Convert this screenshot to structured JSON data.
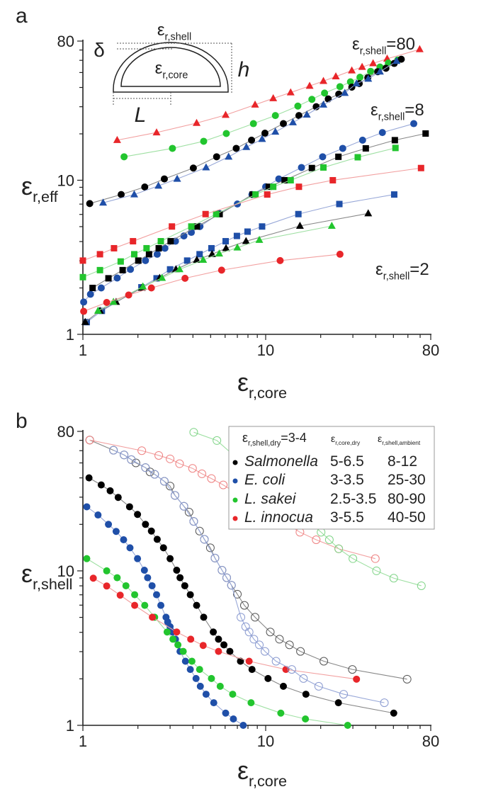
{
  "chart_data": [
    {
      "panel_label": "a",
      "type": "scatter",
      "xscale": "log",
      "yscale": "log",
      "xlim": [
        1,
        80
      ],
      "ylim": [
        1,
        80
      ],
      "xticks": [
        "1",
        "10",
        "80"
      ],
      "yticks": [
        "1",
        "10",
        "80"
      ],
      "xlabel": {
        "main": "ε",
        "sub": "r,core"
      },
      "ylabel": {
        "main": "ε",
        "sub": "r,eff"
      },
      "annotations": [
        {
          "main": "ε",
          "sub": "r,shell",
          "tail": "=80"
        },
        {
          "main": "ε",
          "sub": "r,shell",
          "tail": "=8"
        },
        {
          "main": "ε",
          "sub": "r,shell",
          "tail": "=2"
        }
      ],
      "inset": {
        "shell": {
          "main": "ε",
          "sub": "r,shell"
        },
        "core": {
          "main": "ε",
          "sub": "r,core"
        },
        "delta": "δ",
        "h": "h",
        "L": "L"
      },
      "series": [
        {
          "color": "#e8262a",
          "line": "#f2a0a0",
          "marker": "triangle",
          "filled": true,
          "x": [
            1.54,
            2.53,
            4.19,
            6.04,
            8.75,
            11.0,
            13.7,
            17.4,
            20.7,
            24.2,
            29.6,
            33.7,
            38.7,
            46.2,
            69.6
          ],
          "y": [
            18.2,
            20.4,
            23.5,
            26.5,
            30.9,
            34.0,
            37.1,
            40.9,
            44.0,
            47.1,
            51.5,
            54.3,
            57.3,
            61.4,
            70.7
          ]
        },
        {
          "color": "#22c52e",
          "line": "#9fe0a3",
          "marker": "circle",
          "filled": true,
          "x": [
            1.68,
            3.09,
            4.58,
            6.09,
            8.57,
            11.3,
            15.0,
            17.9,
            21.0,
            25.5,
            29.1,
            32.8,
            37.5,
            42.2,
            46.9,
            52.8
          ],
          "y": [
            14.2,
            16.1,
            17.9,
            20.1,
            23.3,
            26.3,
            30.3,
            33.5,
            36.8,
            40.5,
            43.5,
            46.6,
            50.9,
            54.3,
            57.6,
            60.3
          ]
        },
        {
          "color": "#000000",
          "line": "#888888",
          "marker": "circle",
          "filled": true,
          "x": [
            1.09,
            1.62,
            2.18,
            2.79,
            4.02,
            5.39,
            6.9,
            8.37,
            9.91,
            12.5,
            15.2,
            18.9,
            22.0,
            25.1,
            29.6,
            32.5,
            36.2,
            41.0,
            45.5,
            50.5,
            55.2
          ],
          "y": [
            7.06,
            8.08,
            9.04,
            10.2,
            12.0,
            14.2,
            16.1,
            18.2,
            20.2,
            23.3,
            26.3,
            30.0,
            33.7,
            36.2,
            40.2,
            42.4,
            46.3,
            50.6,
            53.3,
            57.3,
            61.0
          ]
        },
        {
          "color": "#1f4fa8",
          "line": "#98a8d8",
          "marker": "triangle",
          "filled": true,
          "x": [
            1.29,
            1.91,
            2.59,
            3.28,
            4.72,
            6.27,
            7.84,
            9.56,
            11.3,
            14.1,
            16.8,
            20.7,
            27.1,
            31.4,
            36.4,
            42.2,
            52.0
          ],
          "y": [
            7.14,
            8.08,
            9.2,
            10.2,
            12.1,
            14.2,
            16.4,
            18.5,
            20.6,
            23.7,
            26.6,
            30.9,
            36.8,
            42.4,
            45.5,
            50.6,
            59.3
          ]
        },
        {
          "color": "#1f4fa8",
          "line": "#98a8d8",
          "marker": "circle",
          "filled": true,
          "x": [
            1.01,
            1.1,
            1.26,
            1.54,
            1.82,
            2.2,
            2.55,
            2.81,
            3.21,
            3.57,
            3.92,
            4.37,
            5.57,
            7.0,
            8.41,
            10.0,
            11.8,
            15.7,
            20.5,
            26.4,
            33.9,
            43.5,
            64.6
          ],
          "y": [
            1.62,
            1.82,
            2.0,
            2.32,
            2.64,
            3.01,
            3.31,
            3.62,
            4.02,
            4.35,
            4.59,
            5.01,
            6.09,
            7.01,
            8.08,
            9.07,
            10.2,
            12.1,
            14.2,
            16.1,
            18.2,
            20.4,
            23.3
          ]
        },
        {
          "color": "#000000",
          "line": "#888888",
          "marker": "square",
          "filled": true,
          "x": [
            1.13,
            1.38,
            1.65,
            2.01,
            2.3,
            2.6,
            3.02,
            4.2,
            5.6,
            8.49,
            10.4,
            12.7,
            17.9,
            25.0,
            35.3,
            50.9,
            75.0
          ],
          "y": [
            2.0,
            2.31,
            2.61,
            3.01,
            3.31,
            3.62,
            4.02,
            5.01,
            6.03,
            8.08,
            9.07,
            10.0,
            12.0,
            14.2,
            16.1,
            18.2,
            20.1
          ]
        },
        {
          "color": "#22c52e",
          "line": "#9fe0a3",
          "marker": "square",
          "filled": true,
          "x": [
            1.0,
            1.24,
            1.61,
            1.91,
            2.23,
            2.67,
            3.92,
            5.36,
            8.8,
            11.0,
            13.7,
            20.7,
            31.9,
            51.3
          ],
          "y": [
            2.35,
            2.61,
            2.97,
            3.31,
            3.62,
            4.02,
            5.01,
            6.03,
            8.08,
            9.07,
            10.0,
            12.1,
            14.1,
            16.2
          ]
        },
        {
          "color": "#e8262a",
          "line": "#f2a0a0",
          "marker": "square",
          "filled": true,
          "x": [
            1.0,
            1.24,
            1.48,
            1.88,
            3.07,
            4.69,
            10.2,
            15.2,
            23.3,
            70.8
          ],
          "y": [
            3.01,
            3.31,
            3.62,
            4.02,
            5.01,
            6.03,
            8.08,
            9.07,
            10.0,
            12.0
          ]
        },
        {
          "color": "#1f4fa8",
          "line": "#98a8d8",
          "marker": "square",
          "filled": true,
          "x": [
            1.05,
            1.27,
            2.09,
            2.53,
            3.0,
            3.72,
            4.35,
            5.05,
            6.04,
            6.96,
            7.96,
            9.56,
            15.1,
            25.3,
            50.5
          ],
          "y": [
            1.2,
            1.42,
            2.02,
            2.31,
            2.64,
            3.01,
            3.31,
            3.62,
            4.02,
            4.35,
            4.64,
            5.01,
            6.03,
            7.01,
            8.08
          ]
        },
        {
          "color": "#000000",
          "line": "#888888",
          "marker": "triangle",
          "filled": true,
          "x": [
            1.03,
            1.24,
            1.52,
            2.1,
            2.63,
            3.23,
            4.2,
            5.09,
            6.07,
            7.81,
            15.4,
            36.4
          ],
          "y": [
            1.2,
            1.42,
            1.62,
            2.0,
            2.32,
            2.64,
            3.04,
            3.31,
            3.62,
            4.02,
            5.05,
            6.09
          ]
        },
        {
          "color": "#22c52e",
          "line": "#9fe0a3",
          "marker": "triangle",
          "filled": true,
          "x": [
            1.21,
            1.47,
            2.13,
            2.71,
            3.38,
            4.55,
            5.57,
            7.0,
            9.23,
            23.0
          ],
          "y": [
            1.42,
            1.62,
            2.04,
            2.32,
            2.64,
            3.04,
            3.34,
            3.65,
            4.09,
            5.05
          ]
        },
        {
          "color": "#e8262a",
          "line": "#f2a0a0",
          "marker": "circle",
          "filled": true,
          "x": [
            1.01,
            1.35,
            1.78,
            2.37,
            3.62,
            5.74,
            12.0,
            25.5
          ],
          "y": [
            1.41,
            1.61,
            1.8,
            2.0,
            2.31,
            2.61,
            3.01,
            3.31
          ]
        }
      ]
    },
    {
      "panel_label": "b",
      "type": "scatter",
      "xscale": "log",
      "yscale": "log",
      "xlim": [
        1,
        80
      ],
      "ylim": [
        1,
        80
      ],
      "xticks": [
        "1",
        "10",
        "80"
      ],
      "yticks": [
        "1",
        "10",
        "80"
      ],
      "xlabel": {
        "main": "ε",
        "sub": "r,core"
      },
      "ylabel": {
        "main": "ε",
        "sub": "r,shell"
      },
      "legend": {
        "position": "top-right",
        "header": {
          "main": "ε",
          "sub": "r,shell,dry",
          "tail": "=3-4"
        },
        "col2": {
          "main": "ε",
          "sub": "r,core,dry"
        },
        "col3": {
          "main": "ε",
          "sub": "r,shell,ambient"
        },
        "rows": [
          {
            "name": "Salmonella",
            "core_dry": "5-6.5",
            "shell_ambient": "8-12",
            "color": "#000000"
          },
          {
            "name": "E. coli",
            "core_dry": "3-3.5",
            "shell_ambient": "25-30",
            "color": "#1f4fa8"
          },
          {
            "name": "L. sakei",
            "core_dry": "2.5-3.5",
            "shell_ambient": "80-90",
            "color": "#22c52e"
          },
          {
            "name": "L. innocua",
            "core_dry": "3-5.5",
            "shell_ambient": "40-50",
            "color": "#e8262a"
          }
        ]
      },
      "series": [
        {
          "name": "Salmonella",
          "color": "#000000",
          "line": "#888888",
          "marker": "circle",
          "filled": true,
          "x": [
            1.08,
            1.26,
            1.41,
            1.56,
            1.8,
            1.99,
            2.2,
            2.37,
            2.55,
            2.76,
            3.0,
            3.26,
            3.4,
            3.61,
            3.87,
            4.19,
            4.58,
            5.17,
            5.52,
            5.91,
            6.37,
            7.28,
            8.42,
            10.3,
            12.5,
            16.6,
            25.0,
            50.2
          ],
          "y": [
            40.0,
            36.0,
            33.0,
            29.9,
            26.0,
            23.2,
            20.0,
            18.1,
            16.0,
            14.1,
            12.0,
            10.1,
            9.03,
            8.01,
            7.01,
            5.98,
            5.01,
            4.02,
            3.61,
            3.32,
            3.01,
            2.6,
            2.3,
            2.01,
            1.79,
            1.59,
            1.4,
            1.2
          ]
        },
        {
          "name": "E. coli",
          "color": "#1f4fa8",
          "line": "#98a8d8",
          "marker": "circle",
          "filled": true,
          "x": [
            1.05,
            1.21,
            1.38,
            1.52,
            1.67,
            1.81,
            1.99,
            2.17,
            2.26,
            2.39,
            2.53,
            2.67,
            2.85,
            2.91,
            3.0,
            3.09,
            3.21,
            3.4,
            3.64,
            3.87,
            4.16,
            4.39,
            4.72,
            5.2,
            6.04,
            6.66,
            7.54
          ],
          "y": [
            26.0,
            23.0,
            20.0,
            18.0,
            15.9,
            14.1,
            12.0,
            10.1,
            9.03,
            8.01,
            7.01,
            5.98,
            5.01,
            4.67,
            4.35,
            4.02,
            3.61,
            3.01,
            2.6,
            2.3,
            2.01,
            1.79,
            1.59,
            1.4,
            1.2,
            1.1,
            1.0
          ]
        },
        {
          "name": "L. sakei",
          "color": "#22c52e",
          "line": "#9fe0a3",
          "marker": "circle",
          "filled": true,
          "x": [
            1.05,
            1.35,
            1.54,
            1.72,
            1.92,
            2.18,
            2.47,
            2.89,
            3.11,
            3.31,
            3.54,
            3.95,
            4.35,
            5.05,
            5.64,
            6.6,
            8.32,
            12.1,
            16.5,
            28.1
          ],
          "y": [
            12.0,
            10.0,
            9.03,
            8.01,
            7.01,
            5.98,
            5.01,
            4.02,
            3.61,
            3.32,
            3.01,
            2.6,
            2.3,
            2.01,
            1.79,
            1.59,
            1.4,
            1.2,
            1.1,
            1.0
          ]
        },
        {
          "name": "L. innocua",
          "color": "#e8262a",
          "line": "#f2a0a0",
          "marker": "circle",
          "filled": true,
          "x": [
            1.14,
            1.35,
            1.6,
            1.92,
            2.4,
            3.26,
            3.89,
            4.55,
            5.52,
            8.12,
            12.9,
            31.4
          ],
          "y": [
            8.97,
            7.98,
            6.96,
            5.98,
            5.01,
            4.02,
            3.61,
            3.29,
            3.01,
            2.6,
            2.3,
            1.99
          ]
        },
        {
          "color": "#555555",
          "line": "#888888",
          "marker": "circle",
          "filled": false,
          "x": [
            1.09,
            1.47,
            1.68,
            1.84,
            1.95,
            2.2,
            2.33,
            2.47,
            2.79,
            3.0,
            3.19,
            3.57,
            3.81,
            4.04,
            4.35,
            4.62,
            4.98,
            5.28,
            5.77,
            6.12,
            6.5,
            7.0,
            7.65,
            8.75,
            10.6,
            11.9,
            13.5,
            15.5,
            20.8,
            29.8,
            59.4
          ],
          "y": [
            70.3,
            60.4,
            56.3,
            52.5,
            50.0,
            46.6,
            43.7,
            42.2,
            38.0,
            35.4,
            30.8,
            26.2,
            24.0,
            20.9,
            18.1,
            16.0,
            14.1,
            12.1,
            10.1,
            9.03,
            8.07,
            7.06,
            5.98,
            5.01,
            4.02,
            3.61,
            3.32,
            3.01,
            2.6,
            2.3,
            1.99
          ]
        },
        {
          "color": "#8a9ad0",
          "line": "#98a8d8",
          "marker": "circle",
          "filled": false,
          "x": [
            1.47,
            1.68,
            1.84,
            2.2,
            2.47,
            2.79,
            3.19,
            3.57,
            4.04,
            4.62,
            5.28,
            5.77,
            6.12,
            6.5,
            7.32,
            7.77,
            8.12,
            8.62,
            9.23,
            9.91,
            11.4,
            13.9,
            16.1,
            19.5,
            26.7,
            44.6
          ],
          "y": [
            60.4,
            56.3,
            52.5,
            46.6,
            42.2,
            38.0,
            30.8,
            26.2,
            20.9,
            16.0,
            12.1,
            10.1,
            9.03,
            8.07,
            5.01,
            4.35,
            4.02,
            3.61,
            3.32,
            3.01,
            2.6,
            2.3,
            2.01,
            1.79,
            1.59,
            1.4
          ]
        },
        {
          "color": "#ee8080",
          "line": "#f2a0a0",
          "marker": "circle",
          "filled": false,
          "x": [
            1.09,
            2.1,
            2.6,
            3.0,
            3.38,
            3.98,
            4.48,
            5.05,
            5.86,
            15.4,
            18.9,
            25.1,
            39.8
          ],
          "y": [
            70.3,
            60.0,
            55.9,
            53.1,
            49.4,
            46.1,
            42.5,
            39.6,
            36.0,
            17.8,
            15.9,
            13.9,
            12.0
          ]
        },
        {
          "color": "#7fd487",
          "line": "#9fe0a3",
          "marker": "circle",
          "filled": false,
          "x": [
            4.04,
            5.41,
            20.1,
            22.3,
            25.1,
            30.0,
            40.4,
            50.2,
            71.1
          ],
          "y": [
            79.0,
            69.8,
            17.8,
            15.9,
            13.9,
            12.0,
            10.0,
            8.97,
            8.01
          ]
        }
      ]
    }
  ]
}
